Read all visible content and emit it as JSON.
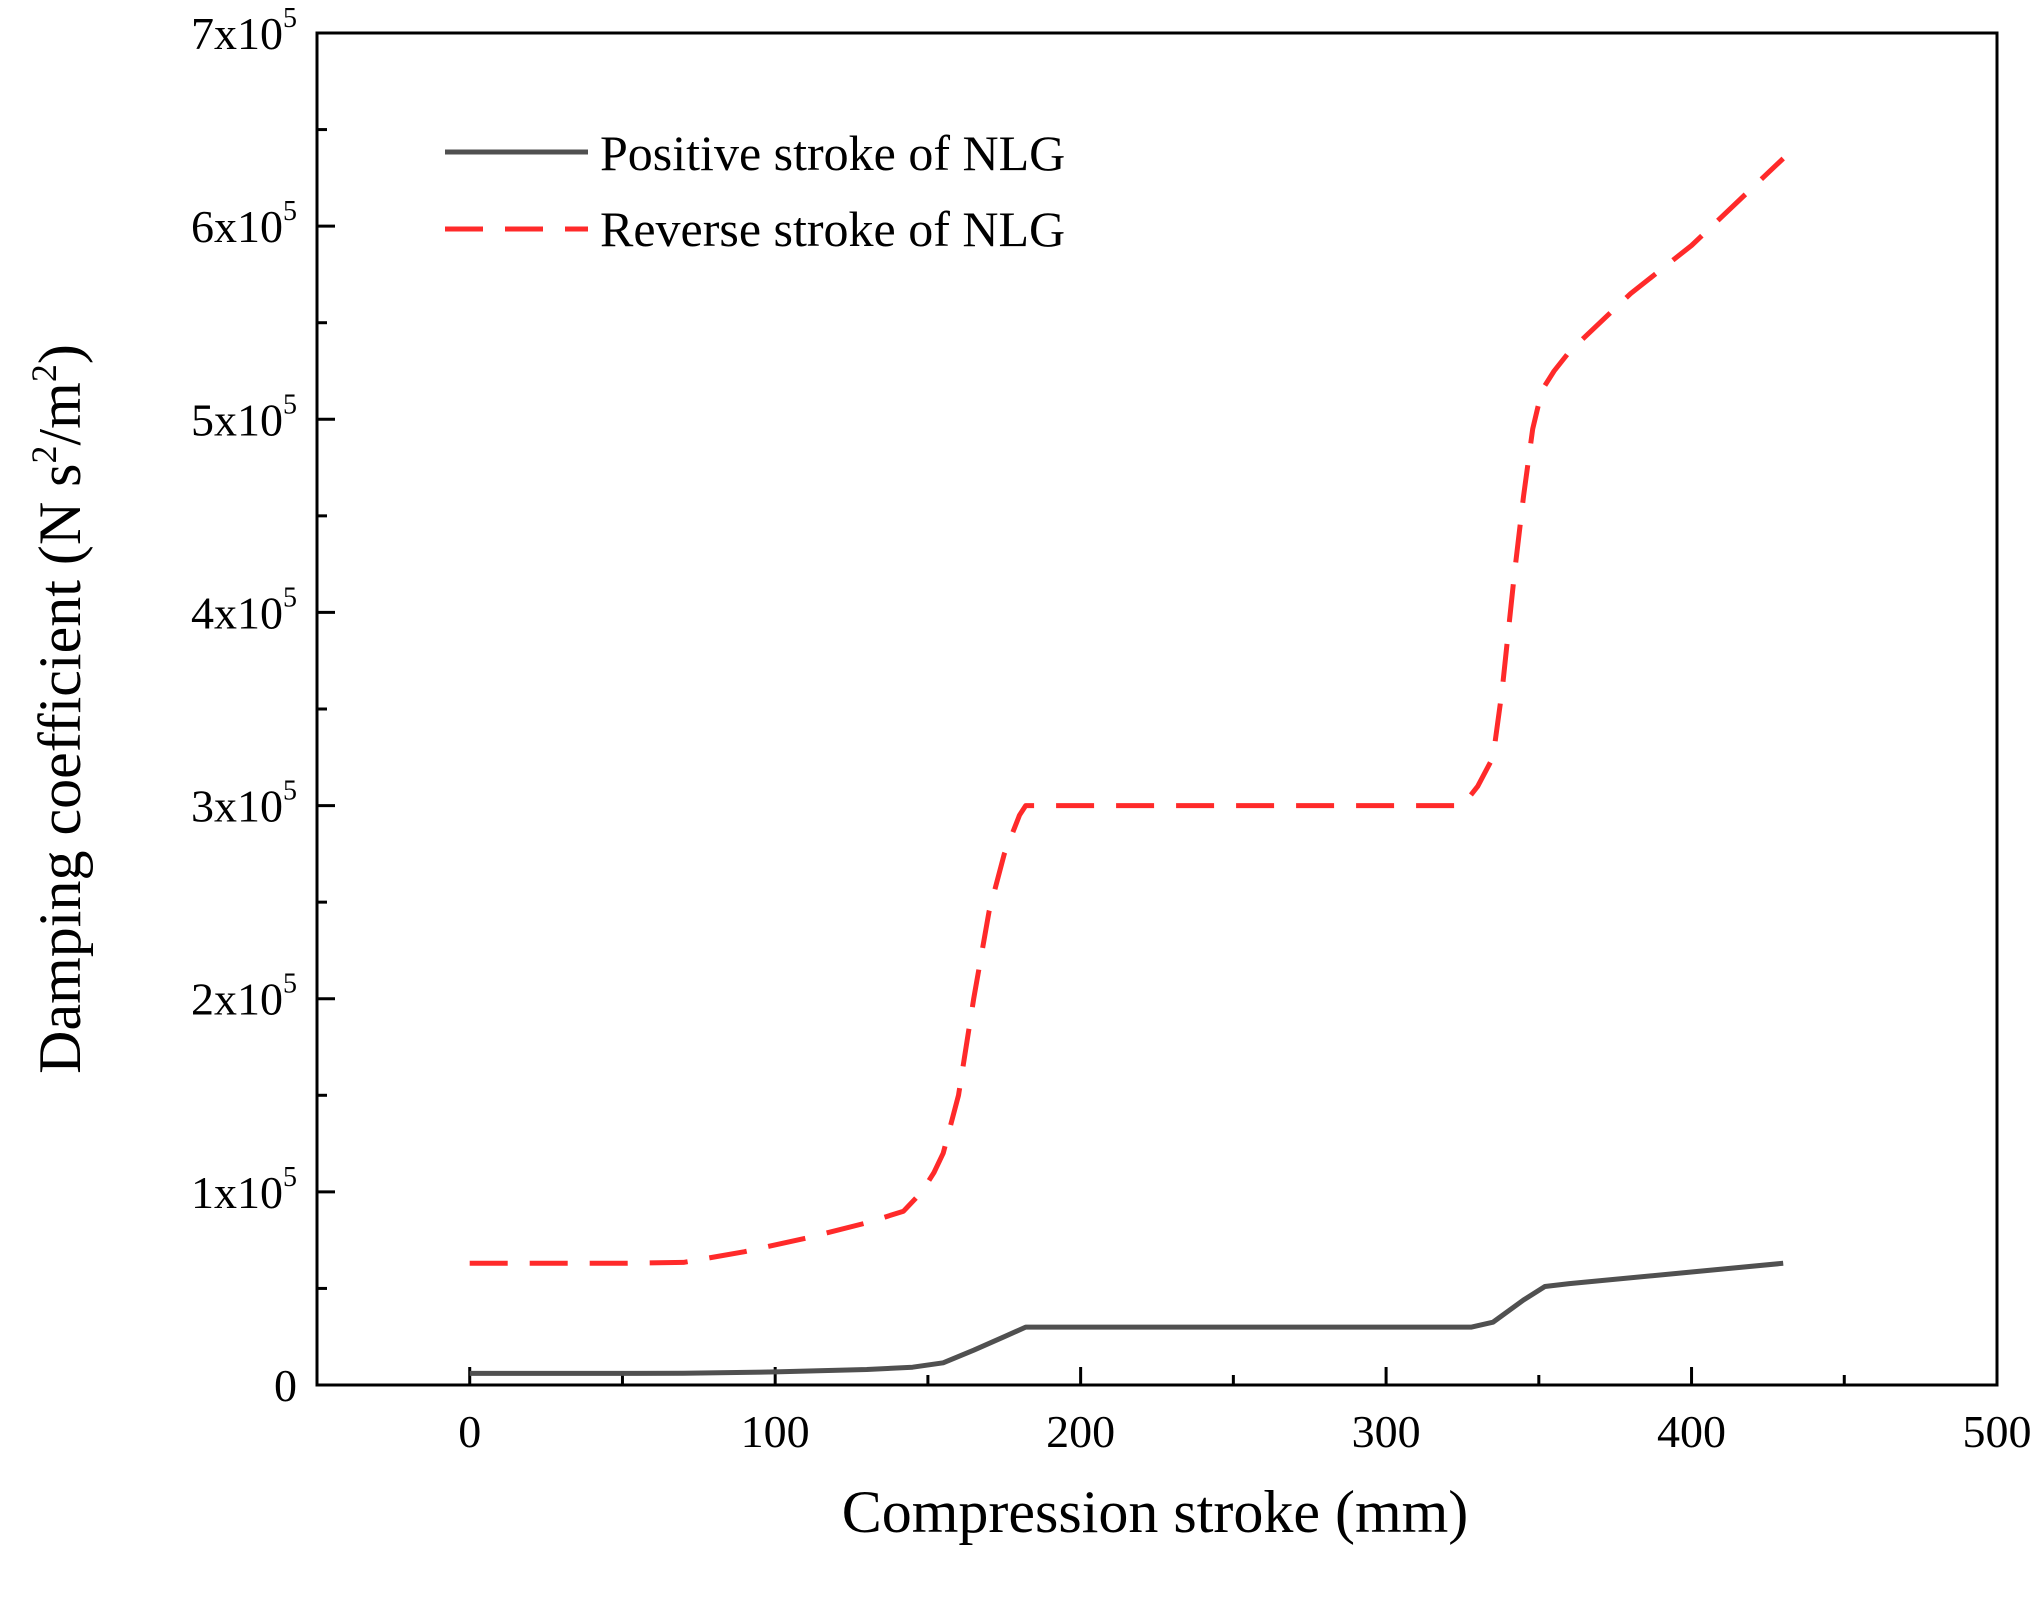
{
  "chart_data": {
    "type": "line",
    "title": "",
    "xlabel": "Compression stroke (mm)",
    "ylabel": {
      "prefix": "Damping coefficient (N s",
      "sup1": "2",
      "mid": "/m",
      "sup2": "2",
      "suffix": ")"
    },
    "xlim": [
      -50,
      500
    ],
    "ylim": [
      0,
      700000
    ],
    "x_ticks": [
      0,
      100,
      200,
      300,
      400,
      500
    ],
    "x_tick_labels": [
      "0",
      "100",
      "200",
      "300",
      "400",
      "500"
    ],
    "y_ticks": [
      0,
      100000,
      200000,
      300000,
      400000,
      500000,
      600000,
      700000
    ],
    "y_tick_labels": [
      {
        "base": "0",
        "exp": ""
      },
      {
        "base": "1x10",
        "exp": "5"
      },
      {
        "base": "2x10",
        "exp": "5"
      },
      {
        "base": "3x10",
        "exp": "5"
      },
      {
        "base": "4x10",
        "exp": "5"
      },
      {
        "base": "5x10",
        "exp": "5"
      },
      {
        "base": "6x10",
        "exp": "5"
      },
      {
        "base": "7x10",
        "exp": "5"
      }
    ],
    "legend": {
      "placement": "top-left",
      "entries": [
        "Positive stroke of NLG",
        "Reverse stroke of NLG"
      ]
    },
    "series": [
      {
        "name": "Positive stroke of NLG",
        "color": "#505050",
        "style": "solid",
        "x": [
          0,
          50,
          70,
          100,
          130,
          145,
          155,
          165,
          175,
          182,
          200,
          250,
          300,
          328,
          335,
          345,
          352,
          360,
          400,
          430
        ],
        "y": [
          6000,
          6000,
          6100,
          6800,
          8000,
          9200,
          11500,
          18000,
          25000,
          30000,
          30000,
          30000,
          30000,
          30000,
          32500,
          44000,
          51000,
          52500,
          58500,
          63000
        ]
      },
      {
        "name": "Reverse stroke of NLG",
        "color": "#ff2a2a",
        "style": "dashed",
        "x": [
          0,
          50,
          70,
          90,
          110,
          130,
          142,
          148,
          152,
          155,
          160,
          165,
          170,
          175,
          180,
          182,
          190,
          250,
          300,
          325,
          330,
          335,
          338,
          342,
          345,
          348,
          351,
          355,
          360,
          380,
          400,
          430
        ],
        "y": [
          63000,
          63000,
          63500,
          69000,
          76000,
          84000,
          90000,
          100000,
          110000,
          120000,
          150000,
          200000,
          245000,
          275000,
          295000,
          300000,
          300000,
          300000,
          300000,
          300000,
          310000,
          325000,
          360000,
          420000,
          460000,
          495000,
          515000,
          525000,
          535000,
          565000,
          590000,
          635000
        ]
      }
    ]
  }
}
